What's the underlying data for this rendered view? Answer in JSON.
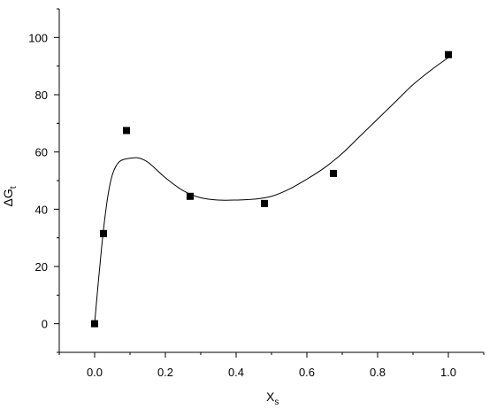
{
  "chart_data": {
    "type": "scatter",
    "title": "",
    "xlabel": {
      "main": "X",
      "sub": "s"
    },
    "ylabel": {
      "main": "ΔG",
      "sub": "t"
    },
    "xlim": [
      -0.1,
      1.1
    ],
    "ylim": [
      -10,
      110
    ],
    "x_ticks": [
      0.0,
      0.2,
      0.4,
      0.6,
      0.8,
      1.0
    ],
    "x_tick_labels": [
      "0.0",
      "0.2",
      "0.4",
      "0.6",
      "0.8",
      "1.0"
    ],
    "y_ticks": [
      0,
      20,
      40,
      60,
      80,
      100
    ],
    "y_tick_labels": [
      "0",
      "20",
      "40",
      "60",
      "80",
      "100"
    ],
    "grid": false,
    "series": [
      {
        "marker": "square",
        "color": "#000000",
        "x": [
          0.0,
          0.025,
          0.09,
          0.27,
          0.48,
          0.675,
          1.0
        ],
        "y": [
          0.0,
          31.5,
          67.5,
          44.5,
          42.0,
          52.5,
          94.0
        ]
      }
    ],
    "fit_curve": {
      "color": "#000000",
      "x": [
        0.0,
        0.01,
        0.02,
        0.03,
        0.04,
        0.05,
        0.06,
        0.07,
        0.08,
        0.09,
        0.1,
        0.12,
        0.14,
        0.16,
        0.2,
        0.25,
        0.3,
        0.35,
        0.4,
        0.45,
        0.5,
        0.55,
        0.6,
        0.65,
        0.7,
        0.75,
        0.8,
        0.85,
        0.9,
        0.95,
        1.0
      ],
      "y": [
        0.0,
        14.0,
        27.0,
        38.0,
        46.5,
        52.0,
        55.0,
        56.6,
        57.3,
        57.6,
        57.8,
        58.0,
        57.2,
        55.5,
        51.0,
        46.5,
        44.0,
        43.2,
        43.2,
        43.5,
        44.5,
        47.0,
        50.5,
        54.5,
        59.5,
        65.5,
        71.5,
        77.5,
        83.5,
        88.5,
        93.0
      ]
    }
  }
}
